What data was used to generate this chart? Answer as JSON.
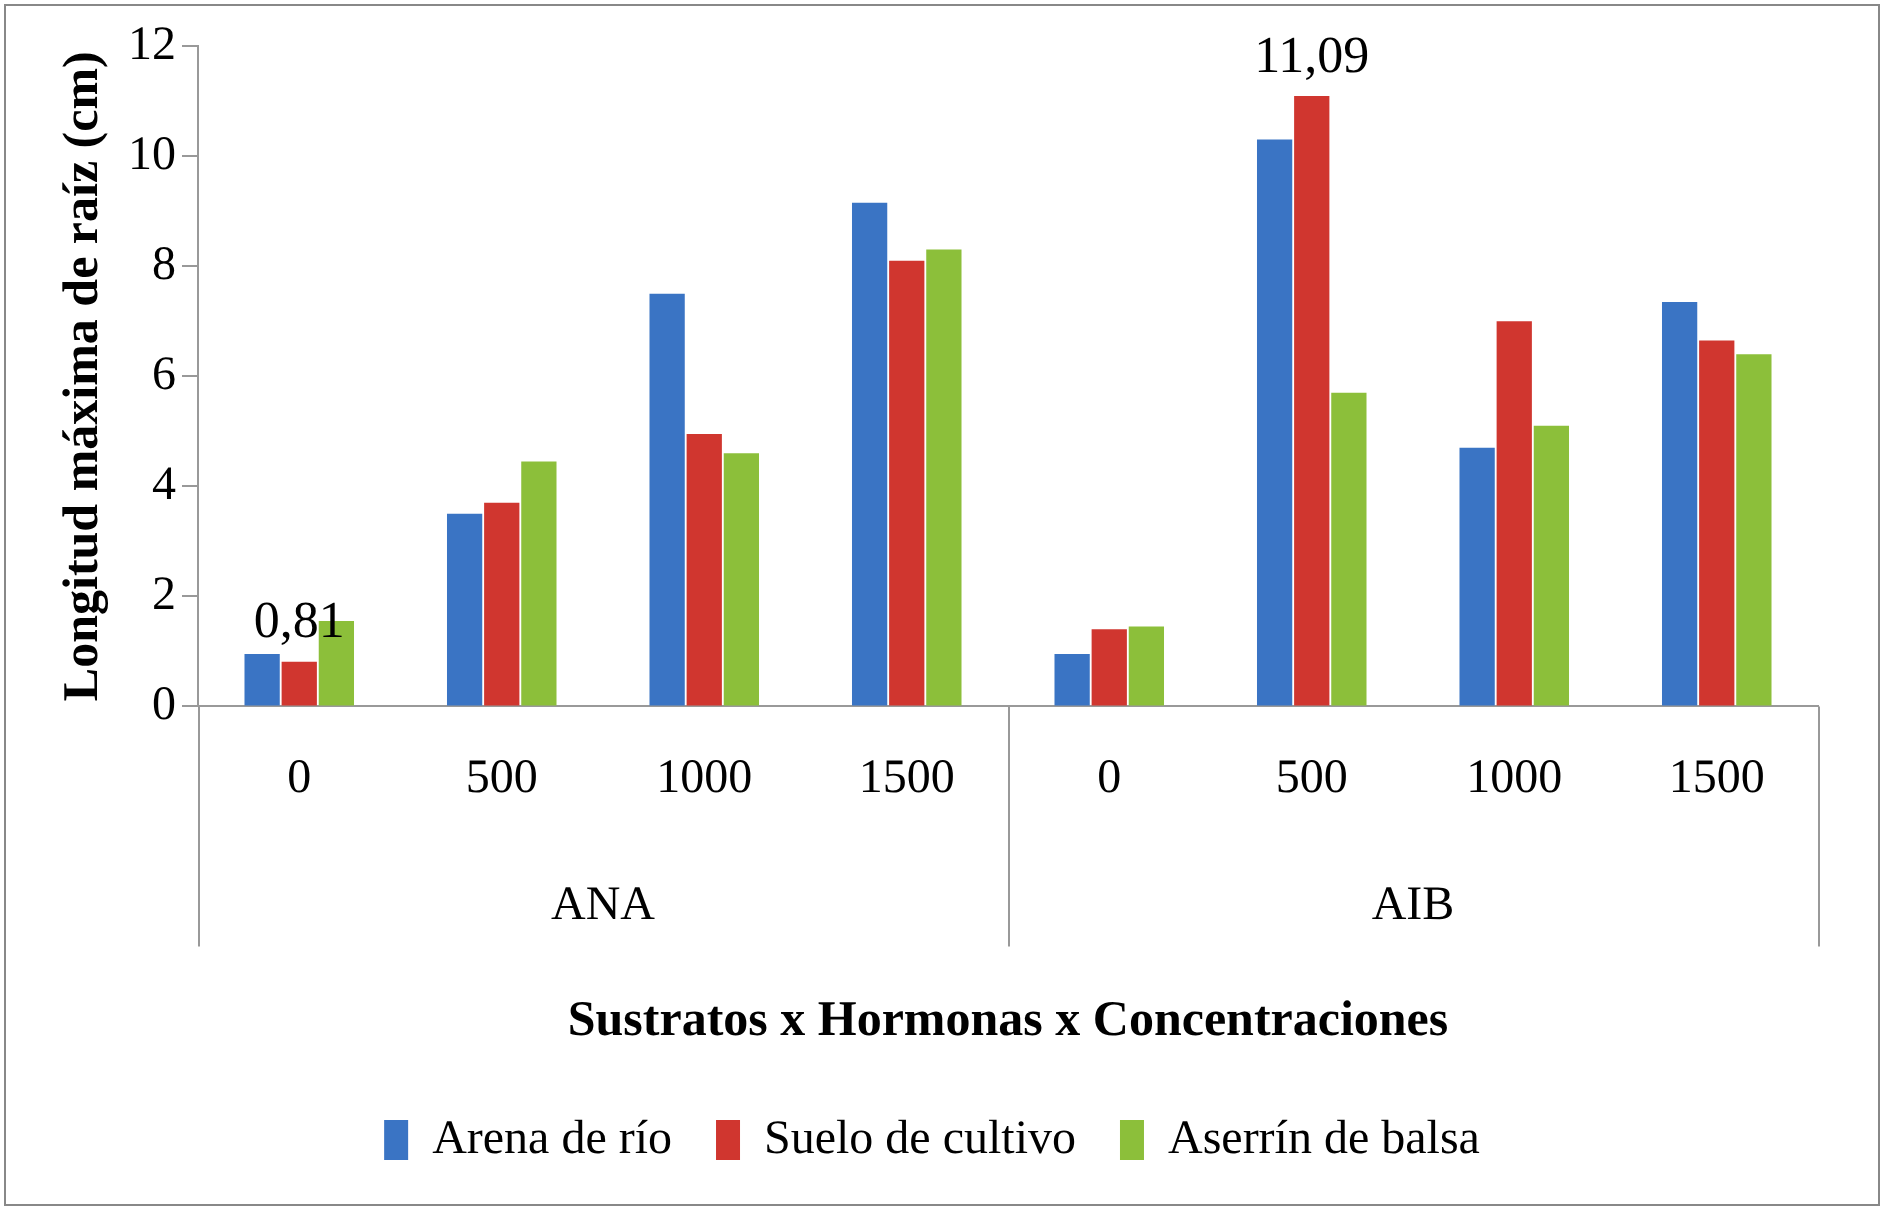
{
  "chart_data": {
    "type": "bar",
    "xlabel": "Sustratos x Hormonas x Concentraciones",
    "ylabel": "Longitud máxima de raíz (cm)",
    "categories": [
      "0",
      "500",
      "1000",
      "1500",
      "0",
      "500",
      "1000",
      "1500"
    ],
    "series": [
      {
        "name": "Arena de río",
        "color": "#3a74c4",
        "values": [
          0.95,
          3.5,
          7.5,
          9.15,
          0.95,
          10.3,
          4.7,
          7.35
        ]
      },
      {
        "name": "Suelo de cultivo",
        "color": "#d0362f",
        "values": [
          0.81,
          3.7,
          4.95,
          8.1,
          1.4,
          11.09,
          7.0,
          6.65
        ],
        "value_labels": [
          "0,81",
          null,
          null,
          null,
          null,
          "11,09",
          null,
          null
        ]
      },
      {
        "name": "Aserrín de balsa",
        "color": "#8cbf3a",
        "values": [
          1.55,
          4.45,
          4.6,
          8.3,
          1.45,
          5.7,
          5.1,
          6.4
        ]
      }
    ],
    "annotations": [
      "ANA",
      "AIB"
    ],
    "ylim": [
      0,
      12
    ],
    "yticks": [
      0,
      2,
      4,
      6,
      8,
      10,
      12
    ],
    "grid": false,
    "legend": "bottom"
  }
}
